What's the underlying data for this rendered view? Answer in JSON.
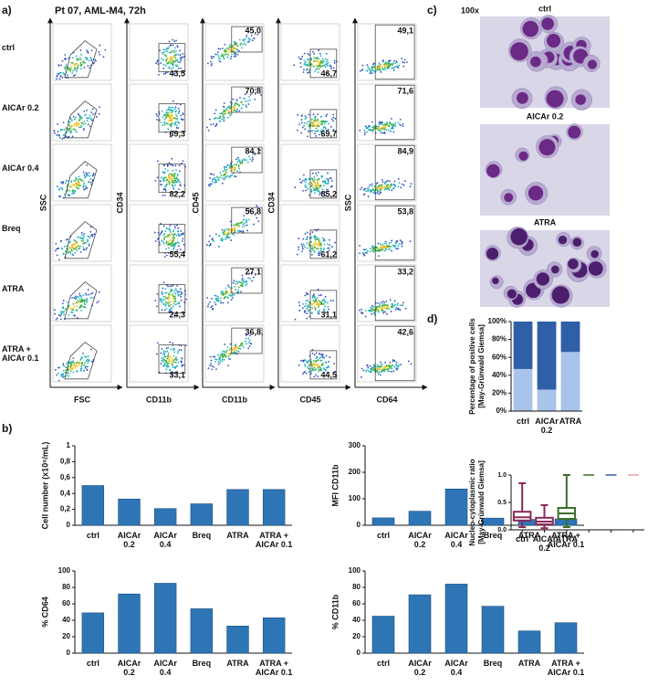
{
  "panel_a": {
    "label": "a)",
    "title": "Pt 07, AML-M4, 72h",
    "rows": [
      "ctrl",
      "AICAr 0.2",
      "AICAr 0.4",
      "Breq",
      "ATRA",
      "ATRA + AICAr 0.1"
    ],
    "columns": [
      {
        "y_label": "SSC",
        "x_label": "FSC",
        "gates": []
      },
      {
        "y_label": "CD34",
        "x_label": "CD11b",
        "gates": [
          "43,5",
          "69,3",
          "82,2",
          "55,4",
          "24,3",
          "33,1"
        ]
      },
      {
        "y_label": "CD45",
        "x_label": "CD11b",
        "gates": [
          "45,0",
          "70,8",
          "84,1",
          "56,8",
          "27,1",
          "36,8"
        ]
      },
      {
        "y_label": "CD34",
        "x_label": "CD45",
        "gates": [
          "46,7",
          "69,7",
          "85,2",
          "61,2",
          "31,1",
          "44,5"
        ]
      },
      {
        "y_label": "SSC",
        "x_label": "CD64",
        "gates": [
          "49,1",
          "71,6",
          "84,9",
          "53,8",
          "33,2",
          "42,6"
        ]
      }
    ]
  },
  "panel_b": {
    "label": "b)",
    "charts": [
      {
        "type": "bar",
        "y_label": "Cell number (x10⁶/mL)",
        "categories": [
          "ctrl",
          "AICAr 0.2",
          "AICAr 0.4",
          "Breq",
          "ATRA",
          "ATRA + AICAr 0.1"
        ],
        "values": [
          0.5,
          0.33,
          0.21,
          0.27,
          0.45,
          0.45
        ],
        "color": "#2e75b6",
        "ylim": [
          0,
          1
        ],
        "yticks": [
          0,
          {
            "value": 0.2,
            "label": "0,2"
          },
          {
            "value": 0.4,
            "label": "0,4"
          },
          {
            "value": 0.6,
            "label": "0,6"
          },
          {
            "value": 0.8,
            "label": "0,8"
          },
          1
        ]
      },
      {
        "type": "bar",
        "y_label": "MFI CD11b",
        "categories": [
          "ctrl",
          "AICAr 0.2",
          "AICAr 0.4",
          "Breq",
          "ATRA",
          "ATRA + AICAr 0.1"
        ],
        "values": [
          28,
          53,
          137,
          27,
          22,
          24
        ],
        "color": "#2e75b6",
        "ylim": [
          0,
          300
        ],
        "yticks": [
          0,
          100,
          200,
          300
        ]
      },
      {
        "type": "bar",
        "y_label": "% CD64",
        "categories": [
          "ctrl",
          "AICAr 0.2",
          "AICAr 0.4",
          "Breq",
          "ATRA",
          "ATRA + AICAr 0.1"
        ],
        "values": [
          49,
          72,
          85,
          54,
          33,
          43
        ],
        "color": "#2e75b6",
        "ylim": [
          0,
          100
        ],
        "yticks": [
          0,
          20,
          40,
          60,
          80,
          100
        ]
      },
      {
        "type": "bar",
        "y_label": "% CD11b",
        "categories": [
          "ctrl",
          "AICAr 0.2",
          "AICAr 0.4",
          "Breq",
          "ATRA",
          "ATRA + AICAr 0.1"
        ],
        "values": [
          45,
          71,
          84,
          57,
          27,
          37
        ],
        "color": "#2e75b6",
        "ylim": [
          0,
          100
        ],
        "yticks": [
          0,
          20,
          40,
          60,
          80,
          100
        ]
      }
    ]
  },
  "panel_c": {
    "label": "c)",
    "magnification": "100x",
    "images": [
      {
        "label": "ctrl"
      },
      {
        "label": "AICAr 0.2"
      },
      {
        "label": "ATRA"
      }
    ]
  },
  "panel_d": {
    "label": "d)",
    "charts": [
      {
        "type": "stacked_bar",
        "y_label": [
          "Percentage of positive cells",
          "[May-Grünwald Giemsa]"
        ],
        "categories": [
          "ctrl",
          "AICAr 0.2",
          "ATRA"
        ],
        "series": [
          {
            "color": "#a9c4ea",
            "values": [
              47,
              24,
              66
            ]
          },
          {
            "color": "#2f5fa7",
            "values": [
              53,
              76,
              34
            ]
          }
        ],
        "ylim": [
          0,
          100
        ],
        "yticks": [
          {
            "value": 0,
            "label": "0%"
          },
          {
            "value": 20,
            "label": "20%"
          },
          {
            "value": 40,
            "label": "40%"
          },
          {
            "value": 60,
            "label": "60%"
          },
          {
            "value": 80,
            "label": "80%"
          },
          {
            "value": 100,
            "label": "100%"
          }
        ]
      },
      {
        "type": "box",
        "y_label": [
          "Nucleo-cytoplasmic ratio",
          "[May-Grünwald Giemsa]"
        ],
        "categories": [
          "ctrl",
          "AICAr 0.2",
          "ATRA",
          null,
          null,
          null
        ],
        "boxes": [
          {
            "color": "#8b2a5a",
            "min": 0.05,
            "q1": 0.17,
            "median": 0.23,
            "q3": 0.33,
            "max": 0.85
          },
          {
            "color": "#8b2a5a",
            "min": 0.03,
            "q1": 0.1,
            "median": 0.15,
            "q3": 0.22,
            "max": 0.45
          },
          {
            "color": "#3d6e2a",
            "min": 0.05,
            "q1": 0.2,
            "median": 0.3,
            "q3": 0.4,
            "max": 1.0
          }
        ],
        "dashes": [
          {
            "color": "#3d6e2a",
            "value": 1.0
          },
          {
            "color": "#2f5fa7",
            "value": 1.0
          },
          {
            "color": "#e8a0a0",
            "value": 1.0
          }
        ],
        "ylim": [
          0,
          1
        ],
        "yticks": [
          {
            "value": 0,
            "label": "0.0"
          },
          {
            "value": 0.5,
            "label": "0.5"
          },
          {
            "value": 1,
            "label": "1.0"
          }
        ]
      }
    ]
  }
}
